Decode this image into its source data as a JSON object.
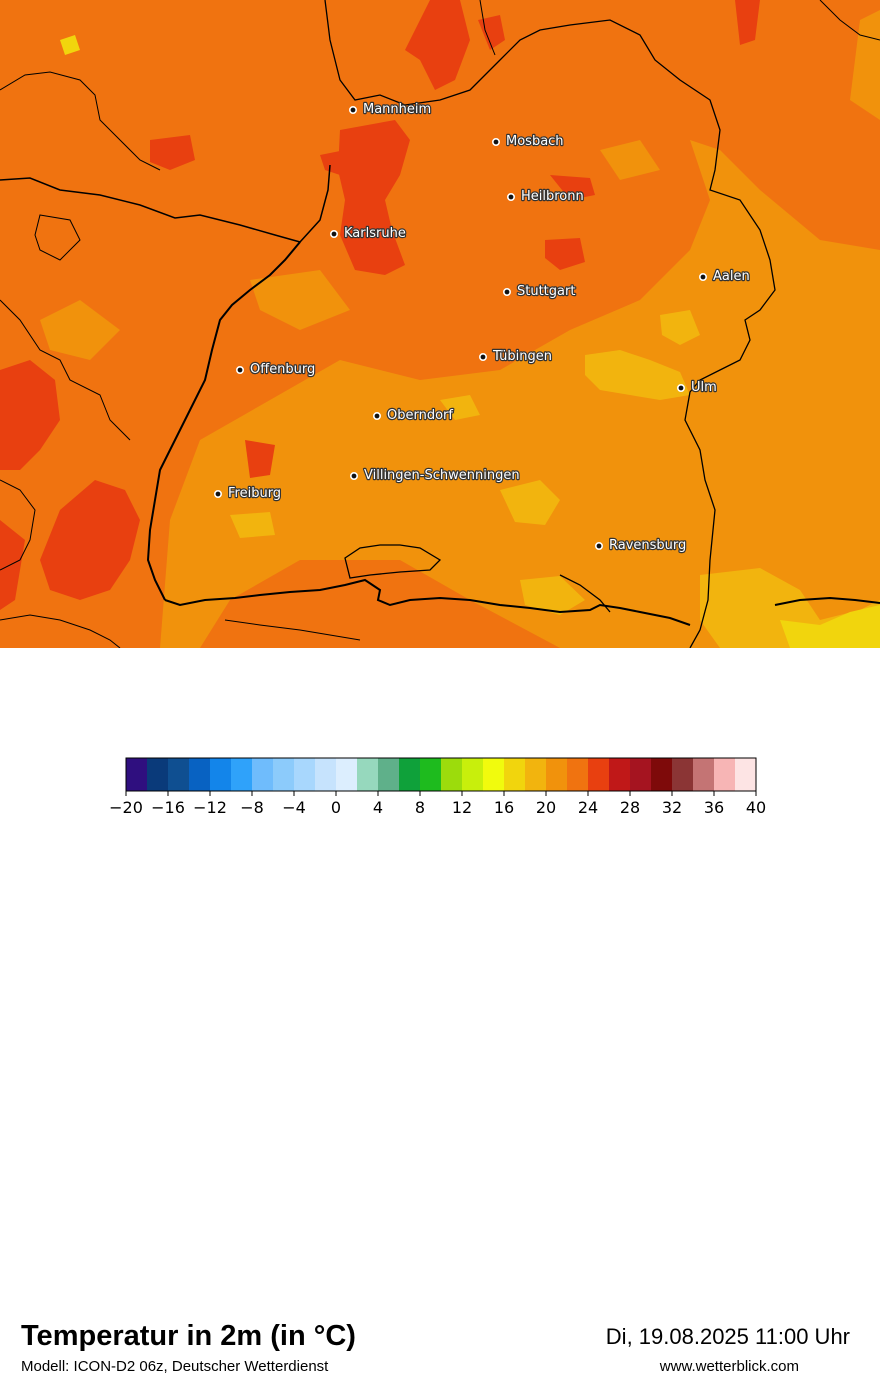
{
  "title": "Temperatur in 2m (in °C)",
  "subtitle": "Modell: ICON-D2 06z, Deutscher Wetterdienst",
  "datetime": "Di, 19.08.2025 11:00 Uhr",
  "website": "www.wetterblick.com",
  "cities": [
    {
      "name": "Mannheim"
    },
    {
      "name": "Mosbach"
    },
    {
      "name": "Heilbronn"
    },
    {
      "name": "Karlsruhe"
    },
    {
      "name": "Aalen"
    },
    {
      "name": "Stuttgart"
    },
    {
      "name": "Tübingen"
    },
    {
      "name": "Offenburg"
    },
    {
      "name": "Ulm"
    },
    {
      "name": "Oberndorf"
    },
    {
      "name": "Villingen-Schwenningen"
    },
    {
      "name": "Freiburg"
    },
    {
      "name": "Ravensburg"
    }
  ],
  "colorbar": {
    "min": -20,
    "max": 40,
    "step": 2,
    "colors": [
      "#2f0f7f",
      "#0a3a7a",
      "#0f4f91",
      "#0862c2",
      "#1385ea",
      "#2fa2fa",
      "#6fbcfc",
      "#8ccbfb",
      "#a8d7fd",
      "#c6e3fd",
      "#dceefe",
      "#96d8bd",
      "#5fb08a",
      "#0fa13a",
      "#1ebb1e",
      "#9cdc0c",
      "#c8ef0c",
      "#f1fb0d",
      "#f1d50d",
      "#f2b40e",
      "#f1920c",
      "#f07310",
      "#e84010",
      "#c01818",
      "#a51420",
      "#7e0a0a",
      "#8b3535",
      "#c47474",
      "#f7b5b5",
      "#fde4e4"
    ],
    "tick_labels": [
      "−20",
      "−16",
      "−12",
      "−8",
      "−4",
      "0",
      "4",
      "8",
      "12",
      "16",
      "20",
      "24",
      "28",
      "32",
      "36",
      "40"
    ]
  },
  "map_colors": {
    "base": "#f07310",
    "warmer": "#e84010",
    "cooler": "#f1920c",
    "coolest": "#f2b40e",
    "coolest_edge": "#f1d50d",
    "border": "#000000"
  }
}
